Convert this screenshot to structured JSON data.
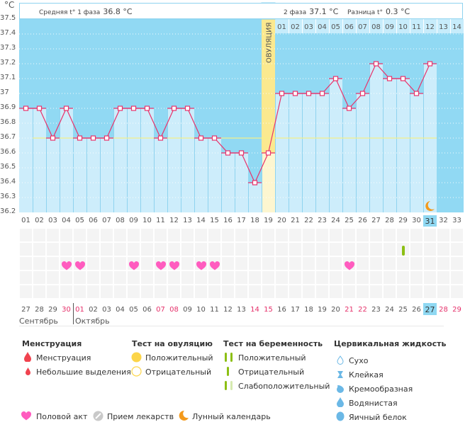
{
  "unit_label": "°C",
  "header": {
    "phase1_label": "Средняя t° 1 фаза",
    "phase1_value": "36.8 °C",
    "phase2_label": "2 фаза",
    "phase2_value": "37.1 °C",
    "diff_label": "Разница t°",
    "diff_value": "0.3 °C"
  },
  "ovulation_label": "ОВУЛЯЦИЯ",
  "colors": {
    "bg_blue": "#91d9f3",
    "bar_blue": "#cdedfb",
    "line": "#e8336b",
    "ovulation": "#fbe98f",
    "ovulation_light": "#fdf6d0",
    "coverline": "#f4f08a",
    "heart": "#ff5cbf",
    "test_green": "#8cbf14",
    "moon": "#f39a1c",
    "red_date": "#e5306a"
  },
  "chart_data": {
    "type": "line",
    "title": "",
    "ylabel": "°C",
    "ylim": [
      36.2,
      37.5
    ],
    "yticks": [
      "37.5",
      "37.4",
      "37.3",
      "37.2",
      "37.1",
      "37",
      "36.9",
      "36.8",
      "36.7",
      "36.6",
      "36.5",
      "36.4",
      "36.3",
      "36.2"
    ],
    "cycle_days": [
      "01",
      "02",
      "03",
      "04",
      "05",
      "06",
      "07",
      "08",
      "09",
      "10",
      "11",
      "12",
      "13",
      "14",
      "15",
      "16",
      "17",
      "18",
      "19",
      "20",
      "21",
      "22",
      "23",
      "24",
      "25",
      "26",
      "27",
      "28",
      "29",
      "30",
      "31",
      "32",
      "33"
    ],
    "temperatures": [
      36.9,
      36.9,
      36.7,
      36.9,
      36.7,
      36.7,
      36.7,
      36.9,
      36.9,
      36.9,
      36.7,
      36.9,
      36.9,
      36.7,
      36.7,
      36.6,
      36.6,
      36.4,
      36.6,
      37.0,
      37.0,
      37.0,
      37.0,
      37.1,
      36.9,
      37.0,
      37.2,
      37.1,
      37.1,
      37.0,
      37.2,
      null,
      null
    ],
    "coverline": 36.7,
    "ovulation_day": 19,
    "phase2_day_labels": [
      "01",
      "02",
      "03",
      "04",
      "05",
      "06",
      "07",
      "08",
      "09",
      "10",
      "11",
      "12",
      "13",
      "14"
    ],
    "today_cycle_day": "31",
    "calendar_days": [
      "27",
      "28",
      "29",
      "30",
      "01",
      "02",
      "03",
      "04",
      "05",
      "06",
      "07",
      "08",
      "09",
      "10",
      "11",
      "12",
      "13",
      "14",
      "15",
      "16",
      "17",
      "18",
      "19",
      "20",
      "21",
      "22",
      "23",
      "24",
      "25",
      "26",
      "27",
      "28",
      "29"
    ],
    "calendar_red_indices": [
      3,
      4,
      10,
      11,
      17,
      18,
      24,
      25,
      31,
      32
    ],
    "today_calendar_index": 30,
    "months": [
      "Сентябрь",
      "Октябрь"
    ],
    "intercourse_days": [
      4,
      5,
      9,
      11,
      12,
      14,
      15,
      25
    ],
    "pregnancy_test_negative_days": [
      29
    ],
    "moon_days": [
      31
    ]
  },
  "legend": {
    "menstruation": {
      "title": "Менструация",
      "items": [
        "Менструация",
        "Небольшие выделения"
      ]
    },
    "ovulation_test": {
      "title": "Тест на овуляцию",
      "items": [
        "Положительный",
        "Отрицательный"
      ]
    },
    "pregnancy_test": {
      "title": "Тест на беременность",
      "items": [
        "Положительный",
        "Отрицательный",
        "Слабоположительный"
      ]
    },
    "cervical": {
      "title": "Цервикальная жидкость",
      "items": [
        "Сухо",
        "Клейкая",
        "Кремообразная",
        "Водянистая",
        "Яичный белок"
      ]
    },
    "bottom": [
      "Половой акт",
      "Прием лекарств",
      "Лунный календарь"
    ]
  }
}
